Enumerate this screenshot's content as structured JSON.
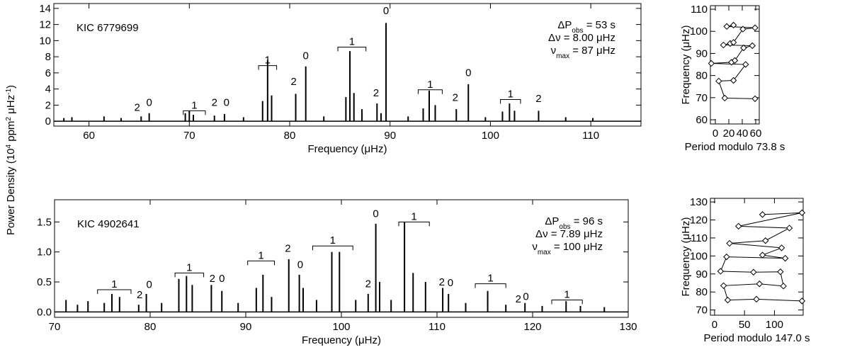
{
  "chart_data": [
    {
      "type": "stem",
      "star": "KIC 6779699",
      "ylabel": [
        {
          "text": "Power Density (10"
        },
        {
          "text": "4",
          "sup": true
        },
        {
          "text": " ppm"
        },
        {
          "text": "2",
          "sup": true
        },
        {
          "text": " μHz"
        },
        {
          "text": "-1",
          "sup": true
        },
        {
          "text": ")"
        }
      ],
      "xlabel": "Frequency (μHz)",
      "info": [
        [
          {
            "text": "ΔP"
          },
          {
            "text": "obs",
            "sub": true
          },
          {
            "text": " = 53 s"
          }
        ],
        [
          {
            "text": "Δν = 8.00 μHz"
          }
        ],
        [
          {
            "text": "ν"
          },
          {
            "text": "max",
            "sub": true
          },
          {
            "text": " = 87 μHz"
          }
        ]
      ],
      "x": [
        57.5,
        58.3,
        61.5,
        63.2,
        65.2,
        66.0,
        69.6,
        70.0,
        70.4,
        72.5,
        73.5,
        75.4,
        77.3,
        77.8,
        78.2,
        80.6,
        81.6,
        83.4,
        85.6,
        86.0,
        86.4,
        87.2,
        88.7,
        89.1,
        89.6,
        91.8,
        93.3,
        93.9,
        94.5,
        96.6,
        97.8,
        99.5,
        101.2,
        101.9,
        102.4,
        104.8,
        107.5,
        110.2
      ],
      "values": [
        0.4,
        0.5,
        0.6,
        0.4,
        0.6,
        1.0,
        1.0,
        1.3,
        0.8,
        0.7,
        0.9,
        0.5,
        2.5,
        7.6,
        3.2,
        3.4,
        6.8,
        0.6,
        3.0,
        8.7,
        3.5,
        1.5,
        2.2,
        1.0,
        12.2,
        0.6,
        1.6,
        3.8,
        2.0,
        1.5,
        4.6,
        0.5,
        1.2,
        2.2,
        1.3,
        1.3,
        0.5,
        0.4
      ],
      "color": "#000000",
      "mode_labels": [
        {
          "label": "2",
          "x": 64.8,
          "y": 1.3
        },
        {
          "label": "0",
          "x": 66.0,
          "y": 1.9
        },
        {
          "label": "2",
          "x": 72.5,
          "y": 1.9
        },
        {
          "label": "0",
          "x": 73.7,
          "y": 1.9
        },
        {
          "label": "2",
          "x": 80.4,
          "y": 4.5
        },
        {
          "label": "0",
          "x": 81.6,
          "y": 7.7
        },
        {
          "label": "2",
          "x": 88.6,
          "y": 3.1
        },
        {
          "label": "0",
          "x": 89.6,
          "y": 13.3
        },
        {
          "label": "2",
          "x": 96.5,
          "y": 2.5
        },
        {
          "label": "0",
          "x": 97.8,
          "y": 5.6
        },
        {
          "label": "2",
          "x": 104.8,
          "y": 2.4
        }
      ],
      "brackets": [
        {
          "label": "1",
          "x": [
            69.4,
            71.6
          ],
          "y": 1.3
        },
        {
          "label": "1",
          "x": [
            76.9,
            78.7
          ],
          "y": 6.9
        },
        {
          "label": "1",
          "x": [
            84.8,
            87.6
          ],
          "y": 9.2
        },
        {
          "label": "1",
          "x": [
            92.8,
            95.2
          ],
          "y": 3.9
        },
        {
          "label": "1",
          "x": [
            101.0,
            103.0
          ],
          "y": 2.7
        }
      ],
      "xlim": [
        56.5,
        115
      ],
      "ylim": [
        -0.6,
        14.6
      ],
      "xticks": [
        60,
        70,
        80,
        90,
        100,
        110
      ],
      "yticks": [
        0,
        2,
        4,
        6,
        8,
        10,
        12,
        14
      ]
    },
    {
      "type": "stem",
      "star": "KIC 4902641",
      "xlabel": "Frequency (μHz)",
      "info": [
        [
          {
            "text": "ΔP"
          },
          {
            "text": "obs",
            "sub": true
          },
          {
            "text": " = 96 s"
          }
        ],
        [
          {
            "text": "Δν = 7.89 μHz"
          }
        ],
        [
          {
            "text": "ν"
          },
          {
            "text": "max",
            "sub": true
          },
          {
            "text": " = 100 μHz"
          }
        ]
      ],
      "x": [
        71.2,
        72.4,
        73.5,
        75.2,
        76.0,
        76.8,
        78.8,
        79.6,
        81.2,
        83.0,
        83.8,
        84.4,
        86.4,
        87.5,
        89.2,
        91.1,
        91.8,
        92.7,
        94.5,
        95.6,
        96.0,
        97.4,
        99.0,
        99.8,
        101.5,
        102.8,
        103.6,
        104.0,
        105.2,
        106.6,
        107.5,
        108.8,
        110.6,
        111.2,
        113.0,
        115.3,
        117.2,
        119.2,
        121.0,
        123.5,
        125.0,
        127.5
      ],
      "values": [
        0.2,
        0.12,
        0.18,
        0.15,
        0.3,
        0.25,
        0.12,
        0.3,
        0.15,
        0.55,
        0.6,
        0.45,
        0.45,
        0.35,
        0.15,
        0.4,
        0.62,
        0.25,
        0.88,
        0.62,
        0.4,
        0.2,
        1.0,
        1.0,
        0.2,
        0.3,
        1.47,
        0.5,
        0.2,
        1.5,
        0.65,
        0.5,
        0.4,
        0.3,
        0.15,
        0.35,
        0.12,
        0.15,
        0.1,
        0.18,
        0.1,
        0.08
      ],
      "color": "#000000",
      "mode_labels": [
        {
          "label": "2",
          "x": 78.9,
          "y": 0.23
        },
        {
          "label": "0",
          "x": 79.9,
          "y": 0.4
        },
        {
          "label": "2",
          "x": 86.5,
          "y": 0.5
        },
        {
          "label": "0",
          "x": 87.5,
          "y": 0.5
        },
        {
          "label": "2",
          "x": 94.4,
          "y": 1.0
        },
        {
          "label": "0",
          "x": 95.7,
          "y": 0.73
        },
        {
          "label": "2",
          "x": 102.8,
          "y": 0.41
        },
        {
          "label": "0",
          "x": 103.6,
          "y": 1.58
        },
        {
          "label": "2",
          "x": 110.5,
          "y": 0.44
        },
        {
          "label": "0",
          "x": 111.4,
          "y": 0.43
        },
        {
          "label": "2",
          "x": 118.5,
          "y": 0.16
        },
        {
          "label": "0",
          "x": 119.3,
          "y": 0.2
        }
      ],
      "brackets": [
        {
          "label": "1",
          "x": [
            74.5,
            78.0
          ],
          "y": 0.37
        },
        {
          "label": "1",
          "x": [
            82.6,
            85.6
          ],
          "y": 0.65
        },
        {
          "label": "1",
          "x": [
            90.2,
            93.0
          ],
          "y": 0.85
        },
        {
          "label": "1",
          "x": [
            97.0,
            101.2
          ],
          "y": 1.1
        },
        {
          "label": "1",
          "x": [
            106.0,
            109.2
          ],
          "y": 1.5
        },
        {
          "label": "1",
          "x": [
            114.0,
            117.2
          ],
          "y": 0.47
        },
        {
          "label": "1",
          "x": [
            122.0,
            125.2
          ],
          "y": 0.2
        }
      ],
      "xlim": [
        70,
        130
      ],
      "ylim": [
        -0.09,
        1.87
      ],
      "xticks": [
        70,
        80,
        90,
        100,
        110,
        120,
        130
      ],
      "yticks": [
        {
          "value": 0,
          "label": "0.0"
        },
        0.5,
        {
          "value": 1,
          "label": "1.0"
        },
        1.5
      ]
    },
    {
      "type": "line",
      "xlabel": "Period modulo 73.8 s",
      "ylabel": "Frequency (μHz)",
      "x": [
        59,
        14,
        5,
        27,
        45,
        -6,
        24,
        29,
        42,
        55,
        12,
        22,
        27,
        41,
        59,
        17,
        27
      ],
      "values": [
        69.5,
        69.8,
        77.5,
        77.8,
        85.0,
        85.5,
        86.0,
        86.8,
        92.5,
        93.5,
        93.8,
        94.5,
        95.0,
        101.0,
        101.6,
        102.2,
        102.8
      ],
      "color": "#000000",
      "xlim": [
        -7.4,
        65.3
      ],
      "ylim": [
        58.1,
        111.6
      ],
      "xticks": [
        0,
        20,
        40,
        60
      ],
      "yticks": [
        60,
        70,
        80,
        90,
        100,
        110
      ]
    },
    {
      "type": "line",
      "xlabel": "Period modulo 147.0 s",
      "ylabel": "Frequency (μHz)",
      "x": [
        146,
        70,
        22,
        15,
        75,
        115,
        110,
        65,
        10,
        20,
        118,
        80,
        112,
        25,
        85,
        125,
        40,
        146,
        80
      ],
      "values": [
        75.0,
        76.0,
        75.5,
        83.5,
        84.5,
        83.3,
        91.2,
        91.0,
        91.5,
        99.5,
        98.7,
        100.5,
        104.5,
        107.0,
        108.5,
        115.5,
        116.5,
        124.0,
        123.0
      ],
      "color": "#000000",
      "xlim": [
        -7,
        148
      ],
      "ylim": [
        67.1,
        132
      ],
      "xticks": [
        0,
        50,
        100
      ],
      "yticks": [
        70,
        80,
        90,
        100,
        110,
        120,
        130
      ]
    }
  ]
}
